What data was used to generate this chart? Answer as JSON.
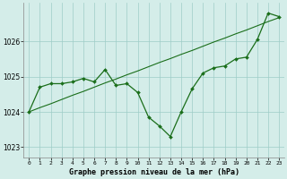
{
  "hours": [
    0,
    1,
    2,
    3,
    4,
    5,
    6,
    7,
    8,
    9,
    10,
    11,
    12,
    13,
    14,
    15,
    16,
    17,
    18,
    19,
    20,
    21,
    22,
    23
  ],
  "pressure": [
    1024.0,
    1024.7,
    1024.8,
    1024.8,
    1024.85,
    1024.95,
    1024.85,
    1025.2,
    1024.75,
    1024.8,
    1024.55,
    1023.85,
    1023.6,
    1023.3,
    1024.0,
    1024.65,
    1025.1,
    1025.25,
    1025.3,
    1025.5,
    1025.55,
    1026.05,
    1026.8,
    1026.7
  ],
  "trend_y": [
    1024.0,
    1024.12,
    1024.23,
    1024.35,
    1024.47,
    1024.58,
    1024.7,
    1024.82,
    1024.93,
    1025.05,
    1025.16,
    1025.28,
    1025.4,
    1025.51,
    1025.63,
    1025.74,
    1025.86,
    1025.98,
    1026.09,
    1026.21,
    1026.32,
    1026.44,
    1026.56,
    1026.67
  ],
  "line_color": "#1a6e1a",
  "bg_color": "#d4ede9",
  "grid_color": "#9ecdc7",
  "xlabel": "Graphe pression niveau de la mer (hPa)",
  "yticks": [
    1023,
    1024,
    1025,
    1026
  ],
  "ylim": [
    1022.7,
    1027.1
  ],
  "xlim": [
    -0.5,
    23.5
  ]
}
